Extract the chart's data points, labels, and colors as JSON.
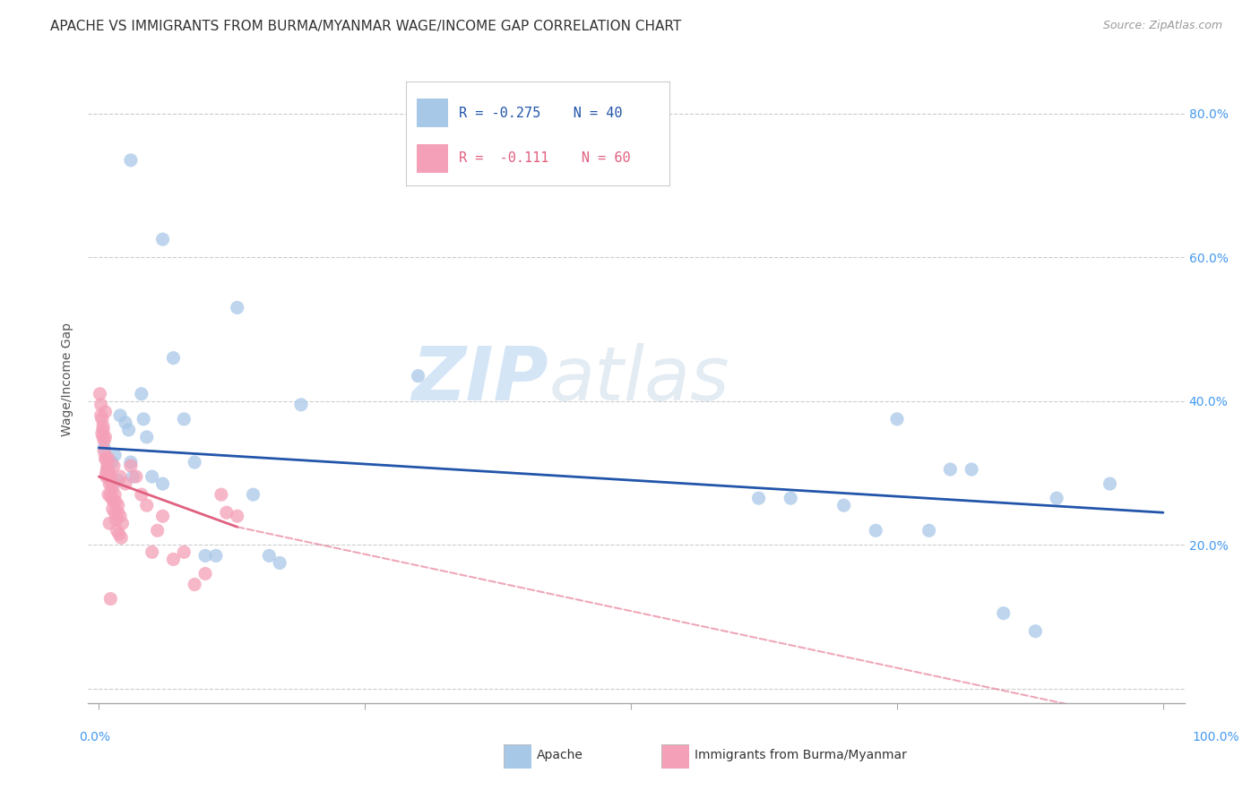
{
  "title": "APACHE VS IMMIGRANTS FROM BURMA/MYANMAR WAGE/INCOME GAP CORRELATION CHART",
  "source": "Source: ZipAtlas.com",
  "ylabel": "Wage/Income Gap",
  "watermark_line1": "ZIP",
  "watermark_line2": "atlas",
  "legend": {
    "apache_R": "-0.275",
    "apache_N": "40",
    "burma_R": "-0.111",
    "burma_N": "60"
  },
  "apache_color": "#a8c8e8",
  "burma_color": "#f4a0b8",
  "apache_line_color": "#2255aa",
  "burma_line_color": "#e06080",
  "apache_scatter": [
    [
      0.005,
      0.335
    ],
    [
      0.008,
      0.305
    ],
    [
      0.012,
      0.315
    ],
    [
      0.015,
      0.325
    ],
    [
      0.018,
      0.29
    ],
    [
      0.02,
      0.38
    ],
    [
      0.025,
      0.37
    ],
    [
      0.028,
      0.36
    ],
    [
      0.03,
      0.315
    ],
    [
      0.032,
      0.295
    ],
    [
      0.04,
      0.41
    ],
    [
      0.042,
      0.375
    ],
    [
      0.045,
      0.35
    ],
    [
      0.05,
      0.295
    ],
    [
      0.06,
      0.285
    ],
    [
      0.07,
      0.46
    ],
    [
      0.08,
      0.375
    ],
    [
      0.09,
      0.315
    ],
    [
      0.1,
      0.185
    ],
    [
      0.11,
      0.185
    ],
    [
      0.13,
      0.53
    ],
    [
      0.145,
      0.27
    ],
    [
      0.16,
      0.185
    ],
    [
      0.17,
      0.175
    ],
    [
      0.19,
      0.395
    ],
    [
      0.3,
      0.435
    ],
    [
      0.62,
      0.265
    ],
    [
      0.65,
      0.265
    ],
    [
      0.7,
      0.255
    ],
    [
      0.73,
      0.22
    ],
    [
      0.75,
      0.375
    ],
    [
      0.78,
      0.22
    ],
    [
      0.8,
      0.305
    ],
    [
      0.82,
      0.305
    ],
    [
      0.85,
      0.105
    ],
    [
      0.88,
      0.08
    ],
    [
      0.9,
      0.265
    ],
    [
      0.95,
      0.285
    ],
    [
      0.03,
      0.735
    ],
    [
      0.06,
      0.625
    ]
  ],
  "burma_scatter": [
    [
      0.002,
      0.38
    ],
    [
      0.003,
      0.355
    ],
    [
      0.004,
      0.36
    ],
    [
      0.005,
      0.345
    ],
    [
      0.005,
      0.33
    ],
    [
      0.006,
      0.35
    ],
    [
      0.006,
      0.32
    ],
    [
      0.007,
      0.3
    ],
    [
      0.007,
      0.295
    ],
    [
      0.008,
      0.305
    ],
    [
      0.008,
      0.31
    ],
    [
      0.009,
      0.295
    ],
    [
      0.009,
      0.32
    ],
    [
      0.01,
      0.285
    ],
    [
      0.01,
      0.3
    ],
    [
      0.011,
      0.27
    ],
    [
      0.011,
      0.295
    ],
    [
      0.012,
      0.265
    ],
    [
      0.012,
      0.285
    ],
    [
      0.013,
      0.25
    ],
    [
      0.013,
      0.28
    ],
    [
      0.014,
      0.26
    ],
    [
      0.014,
      0.31
    ],
    [
      0.015,
      0.245
    ],
    [
      0.015,
      0.27
    ],
    [
      0.016,
      0.235
    ],
    [
      0.016,
      0.26
    ],
    [
      0.017,
      0.22
    ],
    [
      0.018,
      0.245
    ],
    [
      0.018,
      0.255
    ],
    [
      0.019,
      0.215
    ],
    [
      0.02,
      0.24
    ],
    [
      0.02,
      0.295
    ],
    [
      0.021,
      0.21
    ],
    [
      0.022,
      0.23
    ],
    [
      0.025,
      0.285
    ],
    [
      0.03,
      0.31
    ],
    [
      0.035,
      0.295
    ],
    [
      0.04,
      0.27
    ],
    [
      0.045,
      0.255
    ],
    [
      0.05,
      0.19
    ],
    [
      0.055,
      0.22
    ],
    [
      0.06,
      0.24
    ],
    [
      0.07,
      0.18
    ],
    [
      0.08,
      0.19
    ],
    [
      0.09,
      0.145
    ],
    [
      0.1,
      0.16
    ],
    [
      0.115,
      0.27
    ],
    [
      0.12,
      0.245
    ],
    [
      0.13,
      0.24
    ],
    [
      0.001,
      0.41
    ],
    [
      0.002,
      0.395
    ],
    [
      0.003,
      0.375
    ],
    [
      0.004,
      0.365
    ],
    [
      0.004,
      0.35
    ],
    [
      0.006,
      0.385
    ],
    [
      0.007,
      0.32
    ],
    [
      0.009,
      0.27
    ],
    [
      0.01,
      0.23
    ],
    [
      0.011,
      0.125
    ]
  ],
  "ytick_positions": [
    0.0,
    0.2,
    0.4,
    0.6,
    0.8
  ],
  "ytick_labels": [
    "",
    "20.0%",
    "40.0%",
    "60.0%",
    "80.0%"
  ],
  "ylim": [
    -0.02,
    0.88
  ],
  "xlim": [
    -0.01,
    1.02
  ],
  "background_color": "#ffffff",
  "grid_color": "#cccccc",
  "title_fontsize": 11,
  "tick_fontsize": 10,
  "ylabel_fontsize": 10
}
